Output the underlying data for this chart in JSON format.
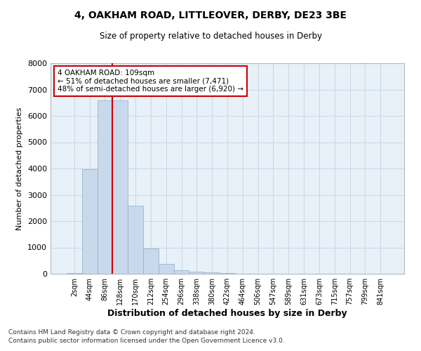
{
  "title1": "4, OAKHAM ROAD, LITTLEOVER, DERBY, DE23 3BE",
  "title2": "Size of property relative to detached houses in Derby",
  "xlabel": "Distribution of detached houses by size in Derby",
  "ylabel": "Number of detached properties",
  "bar_labels": [
    "2sqm",
    "44sqm",
    "86sqm",
    "128sqm",
    "170sqm",
    "212sqm",
    "254sqm",
    "296sqm",
    "338sqm",
    "380sqm",
    "422sqm",
    "464sqm",
    "506sqm",
    "547sqm",
    "589sqm",
    "631sqm",
    "673sqm",
    "715sqm",
    "757sqm",
    "799sqm",
    "841sqm"
  ],
  "bar_values": [
    30,
    3980,
    6580,
    6580,
    2600,
    950,
    380,
    145,
    80,
    50,
    30,
    5,
    0,
    0,
    0,
    0,
    0,
    0,
    0,
    0,
    0
  ],
  "bar_color": "#c9d9eb",
  "bar_edge_color": "#8aaec8",
  "grid_color": "#c8d8e8",
  "background_color": "#e8f0f8",
  "annotation_text": "4 OAKHAM ROAD: 109sqm\n← 51% of detached houses are smaller (7,471)\n48% of semi-detached houses are larger (6,920) →",
  "annotation_box_facecolor": "#ffffff",
  "annotation_box_edgecolor": "#cc0000",
  "vline_color": "#cc0000",
  "vline_x_index": 2.5,
  "ylim": [
    0,
    8000
  ],
  "yticks": [
    0,
    1000,
    2000,
    3000,
    4000,
    5000,
    6000,
    7000,
    8000
  ],
  "footnote1": "Contains HM Land Registry data © Crown copyright and database right 2024.",
  "footnote2": "Contains public sector information licensed under the Open Government Licence v3.0."
}
